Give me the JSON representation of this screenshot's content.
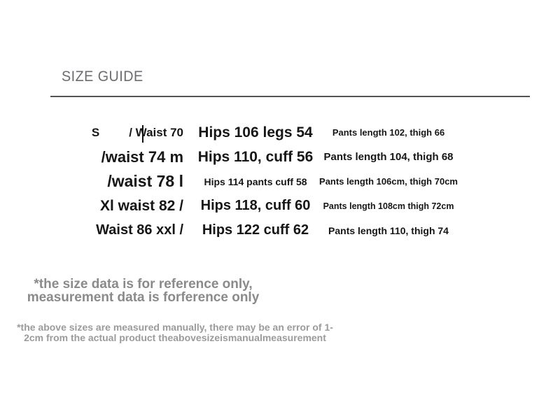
{
  "page": {
    "background_color": "#ffffff",
    "text_color": "#161616"
  },
  "header": {
    "title": "SIZE GUIDE",
    "title_color": "#6b6b72",
    "divider_color": "#53535a"
  },
  "size_table": {
    "rows": [
      {
        "size_prefix": "S",
        "size": "/ Waist 70",
        "hips": "Hips 106 legs 54",
        "pants": "Pants length 102, thigh 66"
      },
      {
        "size_prefix": "",
        "size": "/waist 74 m",
        "hips": "Hips 110, cuff 56",
        "pants": "Pants length 104, thigh 68"
      },
      {
        "size_prefix": "",
        "size": "/waist 78 l",
        "hips": "Hips 114 pants cuff 58",
        "pants": "Pants length 106cm, thigh 70cm"
      },
      {
        "size_prefix": "",
        "size": "Xl waist 82 /",
        "hips": "Hips 118, cuff 60",
        "pants": "Pants length 108cm thigh 72cm"
      },
      {
        "size_prefix": "",
        "size": "Waist 86 xxl /",
        "hips": "Hips 122 cuff 62",
        "pants": "Pants length 110, thigh 74"
      }
    ]
  },
  "notes": {
    "reference_note": {
      "line1": "*the size data is for reference only,",
      "line2": "measurement data is forference only",
      "color": "#8a8a8a"
    },
    "measurement_note": {
      "line1": "*the above sizes are measured manually, there may be an error of 1-",
      "line2": "2cm from the actual product theabovesizeismanualmeasurement",
      "color": "#9b9b9b"
    }
  }
}
